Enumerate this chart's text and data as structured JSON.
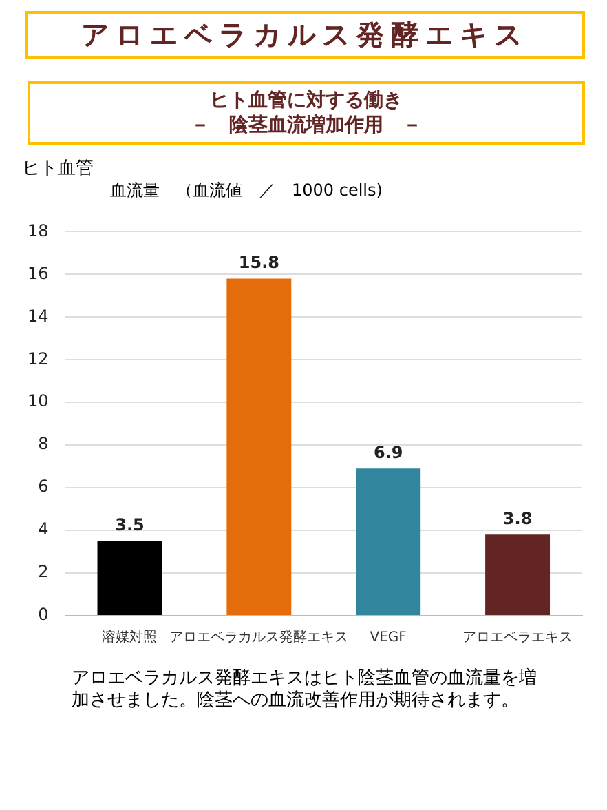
{
  "chart_data": {
    "type": "bar",
    "title": "アロエベラカルス発酵エキス",
    "subtitle": "ヒト血管に対する働き",
    "ylabel": "ヒト血管",
    "annotations": [
      "－　陰茎血流増加作用　－",
      "血流量　（血流値　／　1000 cells)",
      "アロエベラカルス発酵エキスはヒト陰茎血管の血流量を増加させました。陰茎への血流改善作用が期待されます。"
    ],
    "categories": [
      "溶媒対照",
      "アロエベラカルス発酵エキス",
      "VEGF",
      "アロエベラエキス"
    ],
    "values": [
      3.5,
      15.8,
      6.9,
      3.8
    ],
    "colors": [
      "#000000",
      "#e46c0a",
      "#31859c",
      "#632523"
    ],
    "ylim": [
      0,
      18
    ],
    "yticks": [
      0,
      2,
      4,
      6,
      8,
      10,
      12,
      14,
      16,
      18
    ],
    "grid": "y",
    "data_labels": true,
    "legend": false
  }
}
